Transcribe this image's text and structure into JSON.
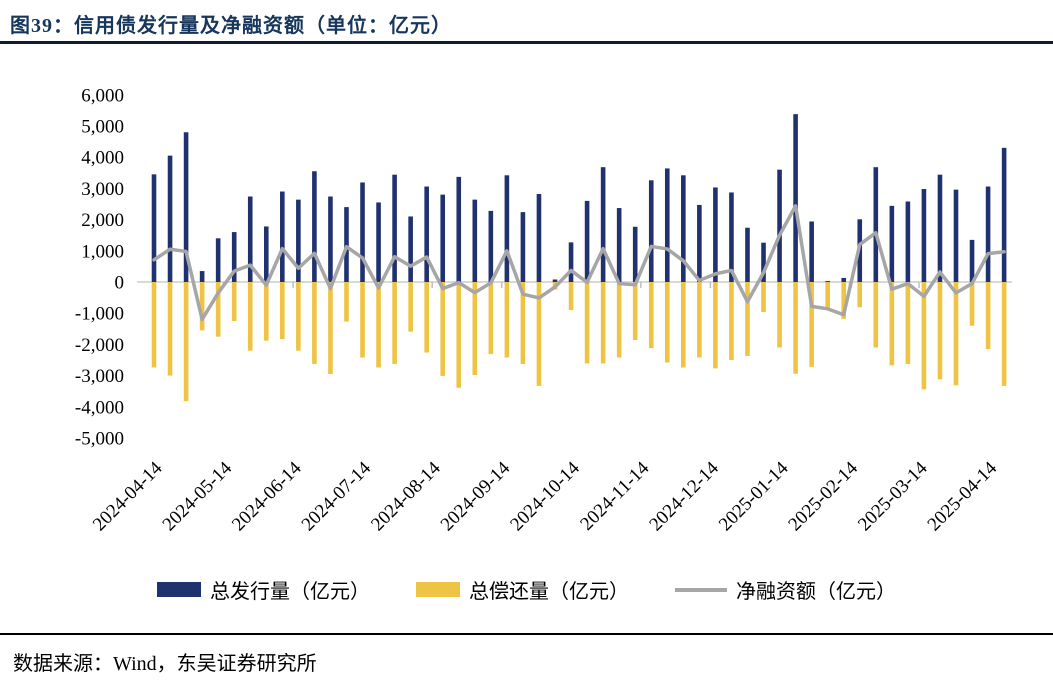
{
  "figure": {
    "title": "图39：信用债发行量及净融资额（单位：亿元）",
    "source": "数据来源：Wind，东吴证券研究所"
  },
  "colors": {
    "title_navy": "#17365D",
    "rule_dark": "#121B2E",
    "bar_issuance": "#203170",
    "bar_repayment": "#EFC343",
    "line_net": "#A6A6A6",
    "zero_axis": "#D9D9D9",
    "tick_mark": "#BFBFBF",
    "axis_text": "#000000"
  },
  "chart_data": {
    "type": "bar",
    "title": "信用债发行量及净融资额（单位：亿元）",
    "xlabel": "",
    "ylabel": "",
    "ylim": [
      -5000,
      6000
    ],
    "y_ticks": [
      6000,
      5000,
      4000,
      3000,
      2000,
      1000,
      0,
      -1000,
      -2000,
      -3000,
      -4000,
      -5000
    ],
    "grid": "off",
    "legend_position": "bottom",
    "x_unit": "week",
    "n_points": 54,
    "x_tick_labels": [
      "2024-04-14",
      "2024-05-14",
      "2024-06-14",
      "2024-07-14",
      "2024-08-14",
      "2024-09-14",
      "2024-10-14",
      "2024-11-14",
      "2024-12-14",
      "2025-01-14",
      "2025-02-14",
      "2025-03-14",
      "2025-04-14"
    ],
    "series": [
      {
        "name": "总发行量（亿元）",
        "type": "bar",
        "color": "#203170",
        "values": [
          3450,
          4050,
          4800,
          350,
          1400,
          1600,
          2740,
          1780,
          2900,
          2640,
          3550,
          2740,
          2400,
          3190,
          2550,
          3440,
          2100,
          3060,
          2800,
          3370,
          2640,
          2280,
          3420,
          2240,
          2820,
          80,
          1270,
          2600,
          3680,
          2370,
          1770,
          3260,
          3640,
          3420,
          2470,
          3030,
          2870,
          1740,
          1260,
          3600,
          5380,
          1940,
          30,
          130,
          2010,
          3680,
          2440,
          2580,
          2980,
          3440,
          2960,
          1350,
          3060,
          4300
        ]
      },
      {
        "name": "总偿还量（亿元）",
        "type": "bar",
        "color": "#EFC343",
        "values": [
          -2740,
          -3000,
          -3820,
          -1550,
          -1750,
          -1250,
          -2200,
          -1880,
          -1830,
          -2200,
          -2630,
          -2950,
          -1270,
          -2420,
          -2740,
          -2630,
          -1590,
          -2260,
          -3010,
          -3390,
          -2980,
          -2310,
          -2420,
          -2630,
          -3330,
          -240,
          -900,
          -2610,
          -2610,
          -2420,
          -1860,
          -2120,
          -2580,
          -2740,
          -2420,
          -2770,
          -2500,
          -2370,
          -960,
          -2100,
          -2940,
          -2720,
          -890,
          -1180,
          -810,
          -2100,
          -2670,
          -2630,
          -3440,
          -3120,
          -3310,
          -1400,
          -2150,
          -3330
        ]
      },
      {
        "name": "净融资额（亿元）",
        "type": "line",
        "color": "#A6A6A6",
        "values": [
          710,
          1050,
          980,
          -1200,
          -350,
          350,
          540,
          -100,
          1070,
          440,
          920,
          -210,
          1130,
          770,
          -190,
          810,
          510,
          800,
          -210,
          -20,
          -340,
          -30,
          1000,
          -390,
          -510,
          -160,
          370,
          -10,
          1070,
          -50,
          -90,
          1140,
          1060,
          680,
          50,
          260,
          370,
          -630,
          300,
          1500,
          2440,
          -780,
          -860,
          -1050,
          1200,
          1580,
          -230,
          -50,
          -460,
          320,
          -350,
          -50,
          910,
          970
        ]
      }
    ]
  }
}
